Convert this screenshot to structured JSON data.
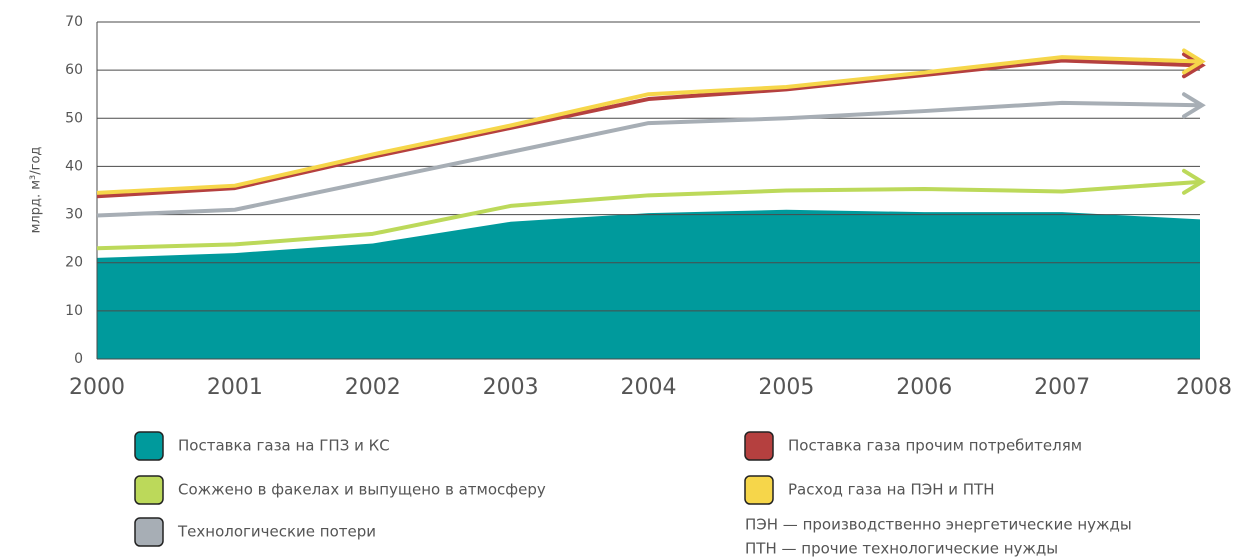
{
  "chart_data": {
    "type": "line",
    "y_label": "млрд. м³/год",
    "categories": [
      "2000",
      "2001",
      "2002",
      "2003",
      "2004",
      "2005",
      "2006",
      "2007",
      "2008"
    ],
    "ylim": [
      0,
      70
    ],
    "yticks": [
      0,
      10,
      20,
      30,
      40,
      50,
      60,
      70
    ],
    "grid": true,
    "series": [
      {
        "name": "Поставка газа на ГПЗ и КС",
        "color": "#009a9c",
        "area": true,
        "values": [
          21,
          22,
          24,
          28.5,
          30.3,
          31,
          30.5,
          30.5,
          29
        ]
      },
      {
        "name": "Сожжено в факелах и выпущено в атмосферу",
        "color": "#bcd95a",
        "values": [
          23,
          23.8,
          26,
          31.8,
          34,
          35,
          35.3,
          34.8,
          36.8
        ]
      },
      {
        "name": "Технологические потери",
        "color": "#a7aeb5",
        "values": [
          29.8,
          31,
          37,
          43,
          49,
          50,
          51.5,
          53.2,
          52.7
        ]
      },
      {
        "name": "Поставка газа прочим потребителям",
        "color": "#b5403f",
        "values": [
          33.8,
          35.5,
          42,
          48,
          54,
          56,
          59,
          62,
          61
        ]
      },
      {
        "name": "Расход газа на ПЭН и ПТН",
        "color": "#f6d64a",
        "values": [
          34.5,
          36,
          42.5,
          48.5,
          55,
          56.5,
          59.5,
          62.7,
          61.8
        ]
      }
    ],
    "notes": [
      "ПЭН — производственно энергетические нужды",
      "ПТН — прочие технологические нужды"
    ]
  }
}
